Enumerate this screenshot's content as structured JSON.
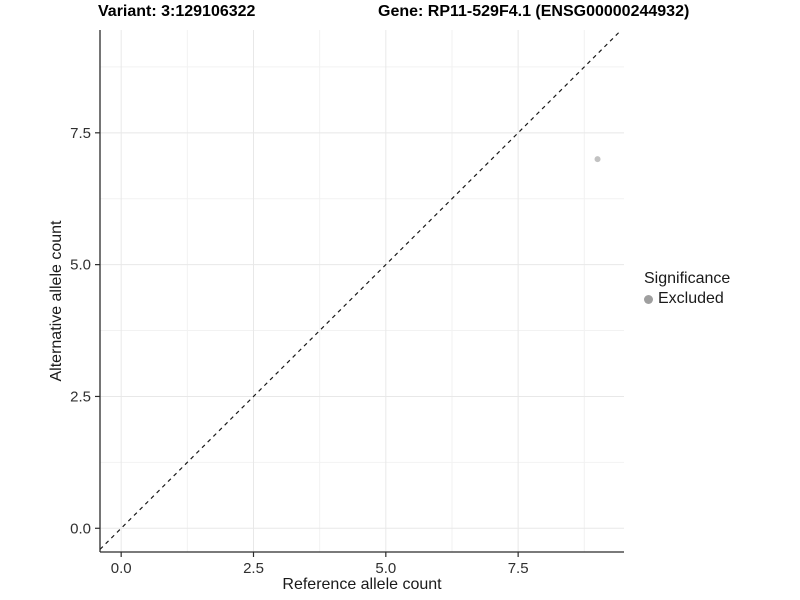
{
  "page": {
    "background": "#ffffff"
  },
  "chart_data": {
    "type": "scatter",
    "title_left": "Variant: 3:129106322",
    "title_right": "Gene: RP11-529F4.1 (ENSG00000244932)",
    "xlabel": "Reference allele count",
    "ylabel": "Alternative allele count",
    "xlim": [
      -0.4,
      9.5
    ],
    "ylim": [
      -0.45,
      9.45
    ],
    "x_ticks": {
      "values": [
        0,
        2.5,
        5,
        7.5
      ],
      "labels": [
        "0.0",
        "2.5",
        "5.0",
        "7.5"
      ]
    },
    "y_ticks": {
      "values": [
        0,
        2.5,
        5,
        7.5
      ],
      "labels": [
        "0.0",
        "2.5",
        "5.0",
        "7.5"
      ]
    },
    "minor_breaks": [
      1.25,
      3.75,
      6.25,
      8.75
    ],
    "grid": true,
    "legend_position": "right",
    "reference_line": {
      "type": "identity",
      "slope": 1,
      "intercept": 0,
      "style": "dashed",
      "color": "#1a1a1a"
    },
    "series": [
      {
        "name": "Excluded",
        "color": "#c2c2c2",
        "point_radius": 3,
        "points": [
          {
            "x": 9,
            "y": 7
          }
        ]
      }
    ],
    "legend": {
      "title": "Significance",
      "items": [
        {
          "label": "Excluded",
          "color": "#9f9f9f"
        }
      ]
    },
    "colors": {
      "axis": "#2b2b2b",
      "tick_label": "#303030",
      "grid_major": "#e8e8e8",
      "grid_minor": "#f2f2f2"
    }
  }
}
